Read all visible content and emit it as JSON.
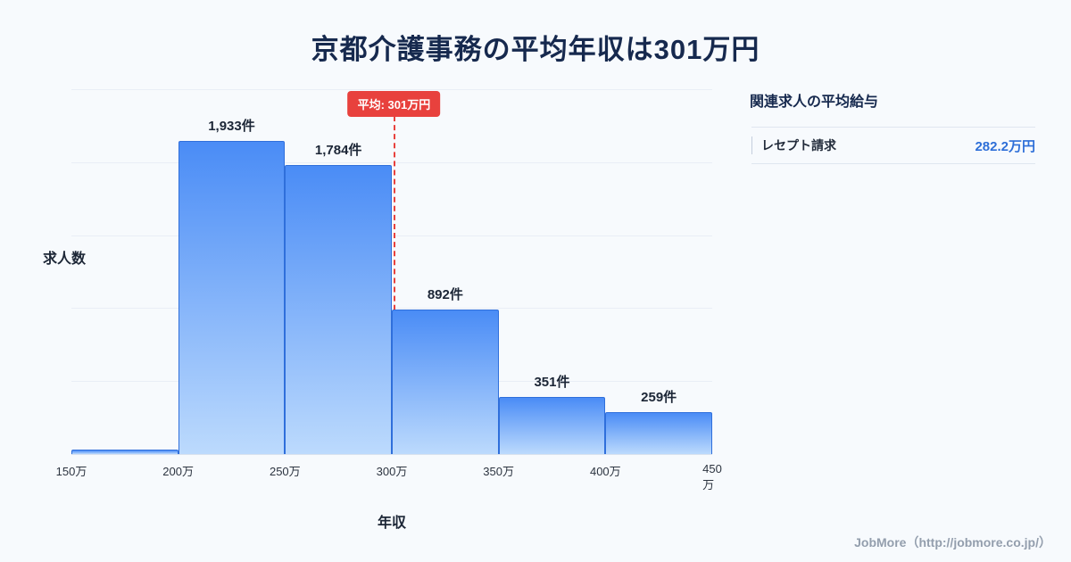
{
  "page": {
    "title": "京都介護事務の平均年収は301万円",
    "footer": "JobMore（http://jobmore.co.jp/）"
  },
  "chart_data": {
    "type": "bar",
    "title": "京都介護事務の平均年収は301万円",
    "xlabel": "年収",
    "ylabel": "求人数",
    "x_tick_labels": [
      "150万",
      "200万",
      "250万",
      "300万",
      "350万",
      "400万",
      "450万"
    ],
    "bins": [
      "150万-200万",
      "200万-250万",
      "250万-300万",
      "300万-350万",
      "350万-400万",
      "400万-450万"
    ],
    "values": [
      30,
      1933,
      1784,
      892,
      351,
      259
    ],
    "bar_labels": [
      "",
      "1,933件",
      "1,784件",
      "892件",
      "351件",
      "259件"
    ],
    "x_range": [
      150,
      450
    ],
    "ylim": [
      0,
      2250
    ],
    "grid": true,
    "legend": "none",
    "average_line": {
      "x_value": 301,
      "label": "平均: 301万円",
      "color": "#e8413d"
    },
    "bar_color_top": "#4a8cf6",
    "bar_color_bottom": "#bcdafd",
    "bar_border_color": "#2f6fdb"
  },
  "side_panel": {
    "title": "関連求人の平均給与",
    "rows": [
      {
        "label": "レセプト請求",
        "value": "282.2万円"
      }
    ]
  }
}
